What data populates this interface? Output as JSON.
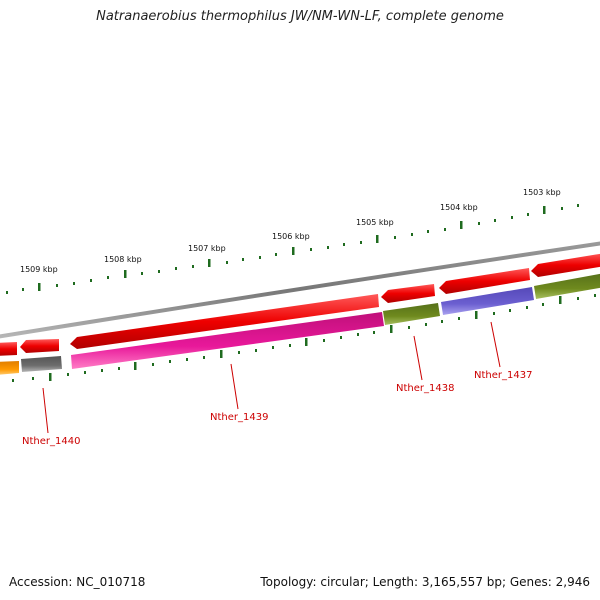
{
  "title": "Natranaerobius thermophilus JW/NM-WN-LF, complete genome",
  "footer": {
    "accession": "Accession: NC_010718",
    "topology": "Topology: circular; Length: 3,165,557 bp; Genes: 2,946"
  },
  "scale_labels": [
    "1509 kbp",
    "1508 kbp",
    "1507 kbp",
    "1506 kbp",
    "1505 kbp",
    "1504 kbp",
    "1503 kbp"
  ],
  "gene_labels": [
    "Nther_1440",
    "Nther_1439",
    "Nther_1438",
    "Nther_1437"
  ],
  "colors": {
    "backbone": "#7a7a7a",
    "red": "#ee0000",
    "magenta": "#e8189a",
    "olive": "#6f8a1e",
    "purple": "#6b5fd0",
    "gray": "#6d6d6d",
    "orange": "#ff9900",
    "tick": "#1f6b1f",
    "label": "#cc0000"
  }
}
